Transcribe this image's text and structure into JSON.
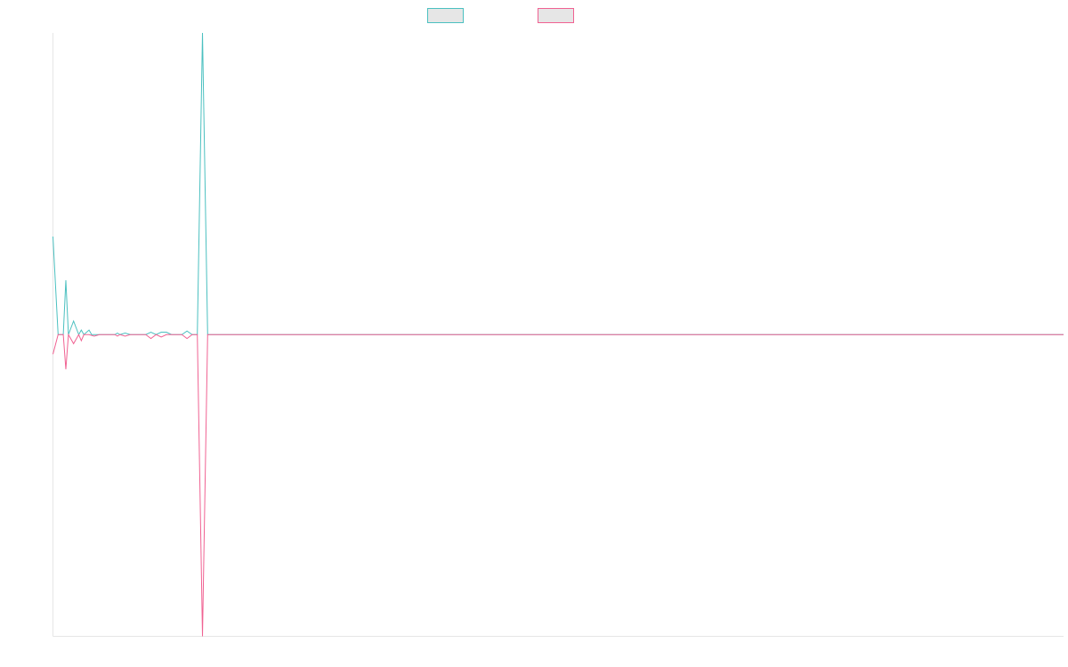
{
  "chart_data": {
    "type": "line",
    "title": "",
    "xlabel": "",
    "ylabel": "",
    "grid": false,
    "legend_position": "top-center",
    "xlim": [
      0,
      196
    ],
    "ylim": [
      -1.0,
      1.0
    ],
    "series": [
      {
        "color": "#4bc0c0",
        "points": [
          [
            0,
            0.325
          ],
          [
            1,
            0.0
          ],
          [
            2,
            0.0
          ],
          [
            2.5,
            0.18
          ],
          [
            3,
            0.0
          ],
          [
            4,
            0.045
          ],
          [
            5,
            0.0
          ],
          [
            5.5,
            0.015
          ],
          [
            6,
            0.0
          ],
          [
            7,
            0.015
          ],
          [
            7.5,
            0.0
          ],
          [
            12,
            0.0
          ],
          [
            12.5,
            0.005
          ],
          [
            13,
            0.0
          ],
          [
            14,
            0.005
          ],
          [
            15,
            0.0
          ],
          [
            18,
            0.0
          ],
          [
            19,
            0.008
          ],
          [
            20,
            0.0
          ],
          [
            21,
            0.008
          ],
          [
            22,
            0.008
          ],
          [
            23,
            0.0
          ],
          [
            25,
            0.0
          ],
          [
            26,
            0.012
          ],
          [
            27,
            0.0
          ],
          [
            28,
            0.0
          ],
          [
            29,
            1.0
          ],
          [
            30,
            0.0
          ],
          [
            196,
            0.0
          ]
        ]
      },
      {
        "color": "#f06292",
        "points": [
          [
            0,
            -0.065
          ],
          [
            1,
            0.0
          ],
          [
            2,
            0.0
          ],
          [
            2.5,
            -0.115
          ],
          [
            3,
            0.0
          ],
          [
            4,
            -0.03
          ],
          [
            5,
            0.0
          ],
          [
            5.5,
            -0.02
          ],
          [
            6,
            0.0
          ],
          [
            7,
            0.0
          ],
          [
            8,
            -0.005
          ],
          [
            9,
            0.0
          ],
          [
            12,
            0.0
          ],
          [
            12.5,
            -0.005
          ],
          [
            13,
            0.0
          ],
          [
            14,
            -0.005
          ],
          [
            15,
            0.0
          ],
          [
            18,
            0.0
          ],
          [
            19,
            -0.013
          ],
          [
            20,
            0.0
          ],
          [
            21,
            -0.008
          ],
          [
            22,
            0.0
          ],
          [
            23,
            0.0
          ],
          [
            25,
            0.0
          ],
          [
            26,
            -0.013
          ],
          [
            27,
            0.0
          ],
          [
            28,
            0.0
          ],
          [
            29,
            -1.0
          ],
          [
            30,
            0.0
          ],
          [
            196,
            0.0
          ]
        ]
      }
    ]
  }
}
